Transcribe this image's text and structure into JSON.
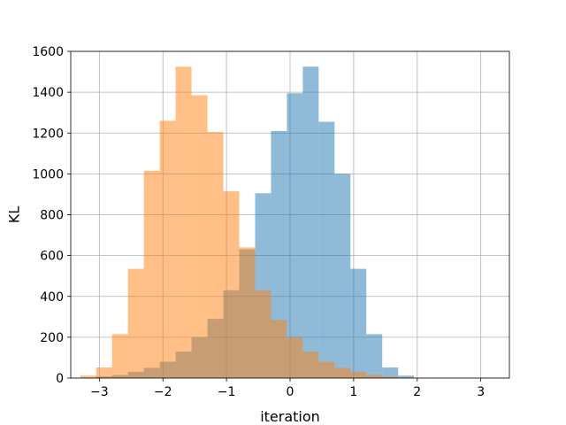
{
  "chart_data": {
    "type": "bar",
    "subtype": "overlapping-histogram",
    "title": "",
    "xlabel": "iteration",
    "ylabel": "KL",
    "xlim": [
      -3.45,
      3.45
    ],
    "ylim": [
      0,
      1600
    ],
    "xticks": [
      -3,
      -2,
      -1,
      0,
      1,
      2,
      3
    ],
    "xtick_labels": [
      "−3",
      "−2",
      "−1",
      "0",
      "1",
      "2",
      "3"
    ],
    "yticks": [
      0,
      200,
      400,
      600,
      800,
      1000,
      1200,
      1400,
      1600
    ],
    "ytick_labels": [
      "0",
      "200",
      "400",
      "600",
      "800",
      "1000",
      "1200",
      "1400",
      "1600"
    ],
    "grid": true,
    "legend": "none",
    "series": [
      {
        "color": "#1f77b4",
        "alpha": 0.5,
        "bin_start": -3.3,
        "bin_width": 0.25,
        "values": [
          1,
          8,
          15,
          30,
          50,
          80,
          130,
          200,
          290,
          430,
          630,
          905,
          1210,
          1395,
          1525,
          1255,
          1000,
          535,
          215,
          52,
          12
        ]
      },
      {
        "color": "#ff7f0e",
        "alpha": 0.5,
        "bin_start": -3.3,
        "bin_width": 0.25,
        "values": [
          12,
          52,
          215,
          535,
          1015,
          1260,
          1525,
          1385,
          1205,
          915,
          640,
          430,
          285,
          200,
          130,
          80,
          50,
          30,
          15,
          8,
          1
        ]
      }
    ]
  }
}
